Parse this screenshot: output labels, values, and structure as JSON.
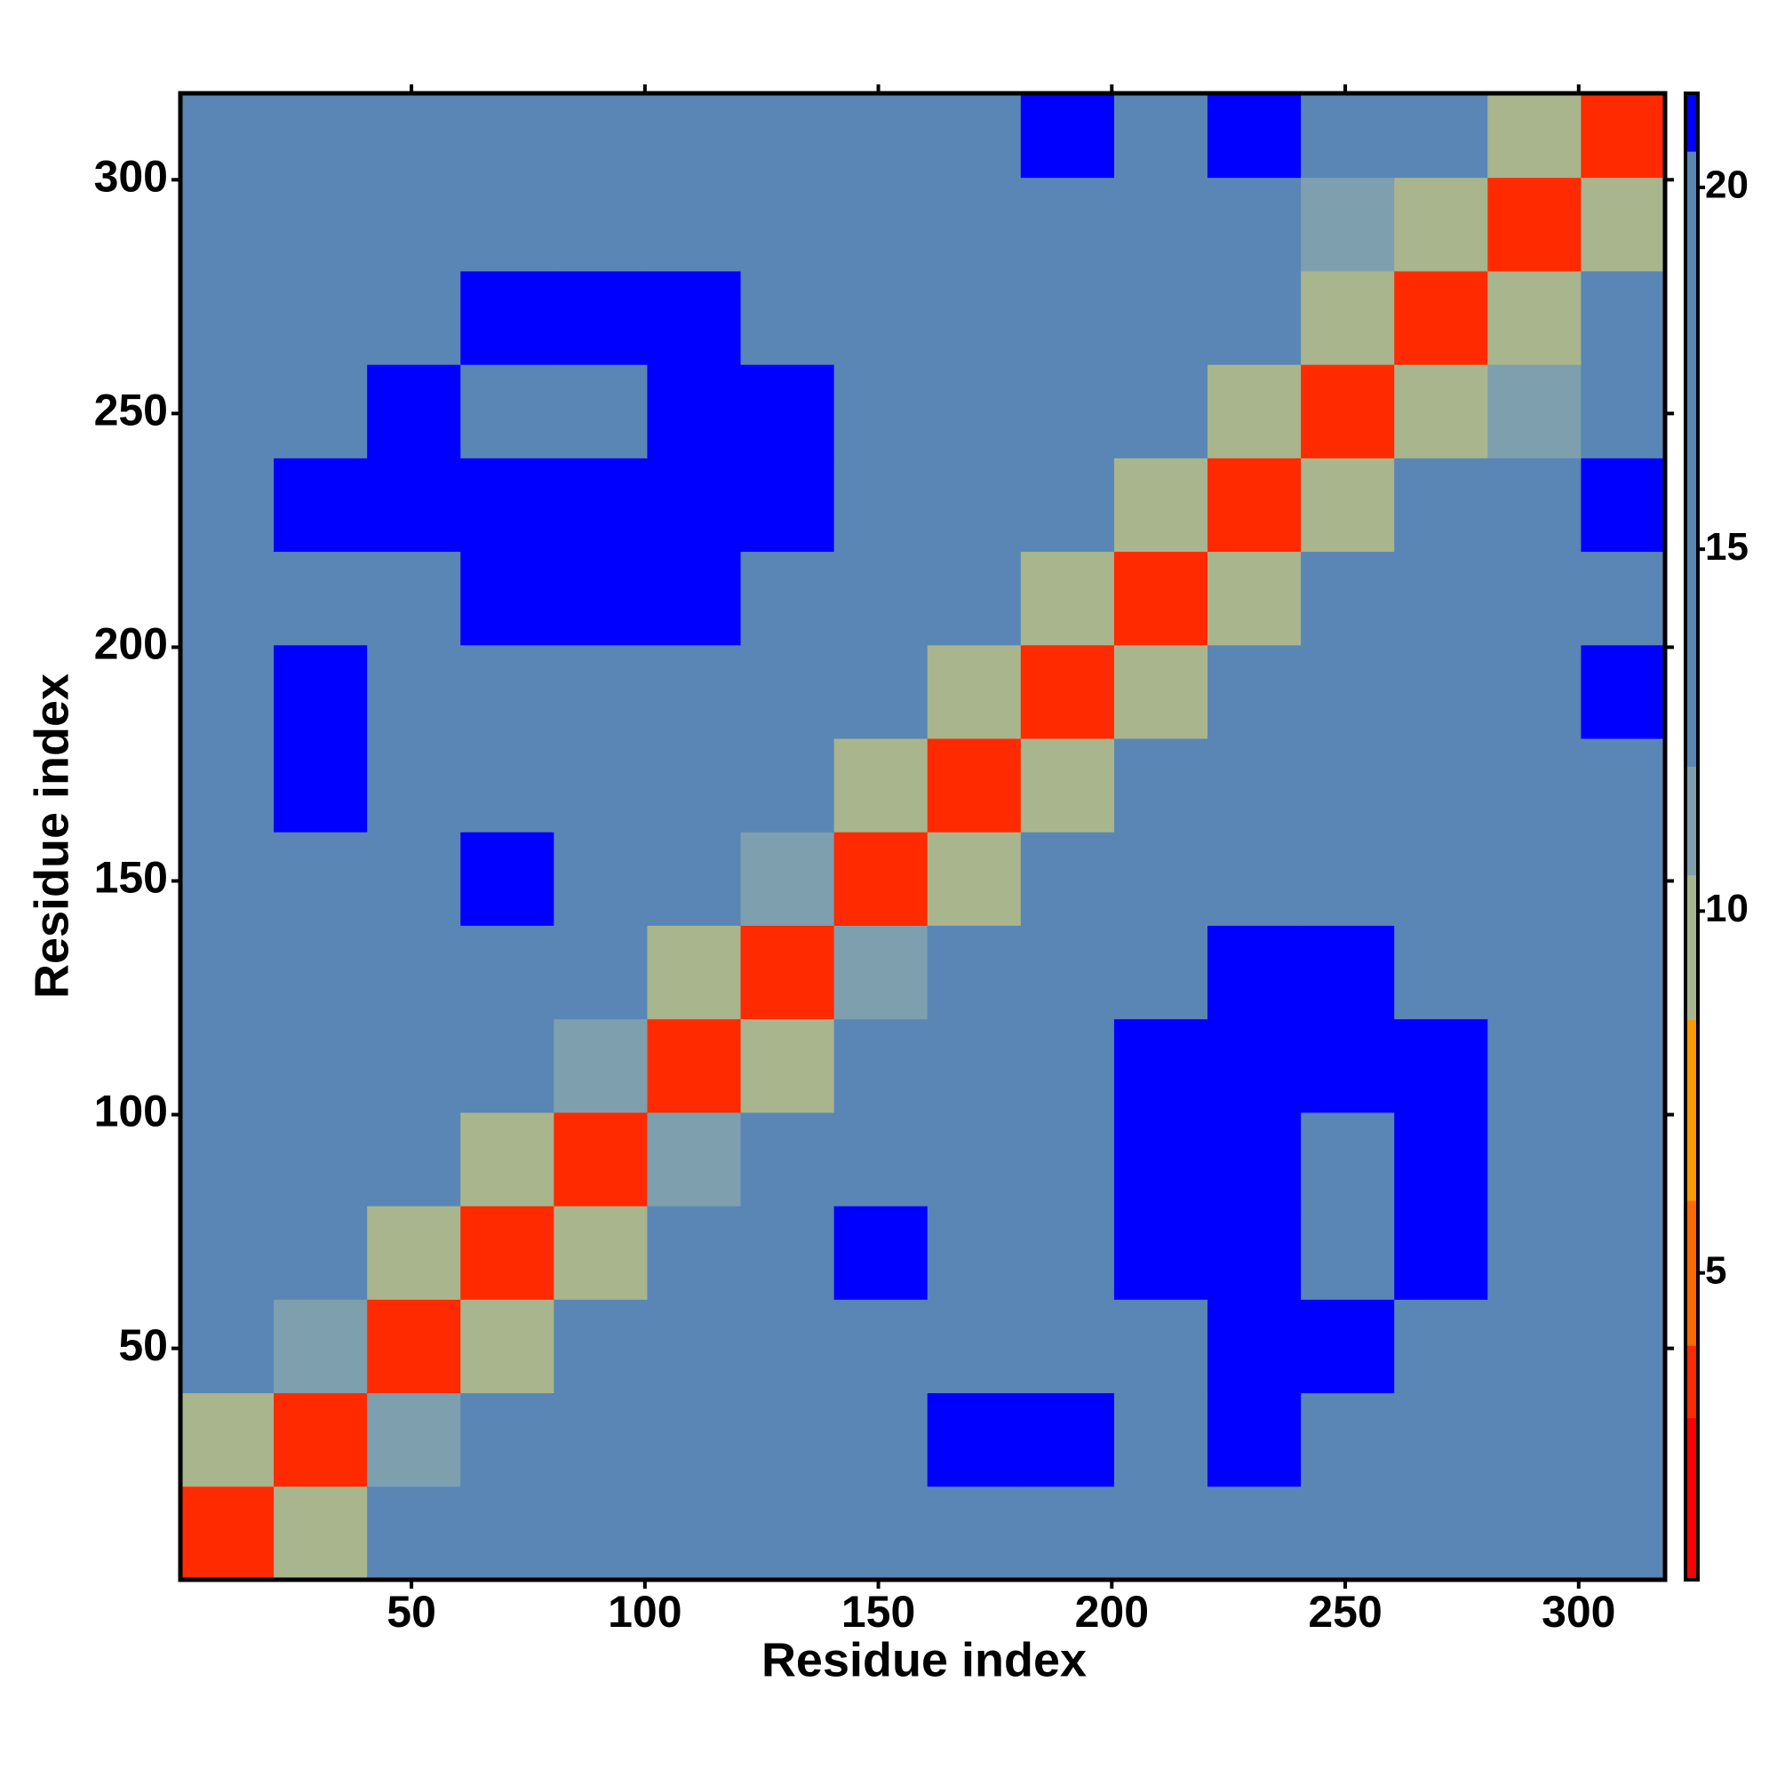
{
  "chart_data": {
    "type": "heatmap",
    "xlabel": "Residue index",
    "ylabel": "Residue index",
    "xbins": [
      0.5,
      20.5,
      40.5,
      60.5,
      80.5,
      100.5,
      120.5,
      140.5,
      160.5,
      180.5,
      200.5,
      220.5,
      240.5,
      260.5,
      280.5,
      300.5,
      318.5
    ],
    "ybins": [
      0.5,
      20.5,
      40.5,
      60.5,
      80.5,
      100.5,
      120.5,
      140.5,
      160.5,
      180.5,
      200.5,
      220.5,
      240.5,
      260.5,
      280.5,
      300.5,
      318.5
    ],
    "xlim": [
      0.5,
      318.5
    ],
    "ylim": [
      0.5,
      318.5
    ],
    "xticks": [
      50,
      100,
      150,
      200,
      250,
      300
    ],
    "yticks": [
      50,
      100,
      150,
      200,
      250,
      300
    ],
    "z": [
      [
        3,
        10,
        14,
        15,
        17,
        19,
        17,
        17,
        18,
        18,
        18,
        17,
        17,
        15,
        12,
        14
      ],
      [
        10,
        3,
        11,
        14,
        15,
        20,
        17,
        18,
        21,
        21,
        19,
        21,
        18,
        20,
        15,
        17
      ],
      [
        14,
        11,
        3,
        10,
        13,
        16,
        15,
        17,
        19,
        18,
        20,
        21,
        21,
        18,
        17,
        19
      ],
      [
        15,
        14,
        10,
        3,
        10,
        13,
        12,
        21,
        18,
        20,
        21,
        21,
        19,
        21,
        17,
        17
      ],
      [
        17,
        15,
        13,
        10,
        3,
        11,
        12,
        20,
        19,
        18,
        21,
        21,
        20,
        21,
        19,
        17
      ],
      [
        19,
        20,
        16,
        13,
        11,
        3,
        10,
        17,
        19,
        20,
        21,
        21,
        21,
        21,
        17,
        16
      ],
      [
        17,
        17,
        15,
        12,
        12,
        10,
        3,
        11,
        14,
        16,
        18,
        21,
        21,
        18,
        16,
        14
      ],
      [
        17,
        18,
        17,
        21,
        20,
        17,
        11,
        3,
        10,
        12,
        15,
        17,
        18,
        17,
        16,
        20
      ],
      [
        18,
        21,
        19,
        18,
        19,
        19,
        14,
        10,
        3,
        10,
        13,
        13,
        14,
        17,
        18,
        20
      ],
      [
        18,
        21,
        18,
        20,
        18,
        20,
        16,
        12,
        10,
        3,
        10,
        12,
        13,
        15,
        18,
        21
      ],
      [
        18,
        19,
        20,
        21,
        21,
        21,
        18,
        15,
        13,
        10,
        3,
        10,
        12,
        14,
        15,
        19
      ],
      [
        17,
        21,
        21,
        21,
        21,
        21,
        21,
        17,
        13,
        12,
        10,
        3,
        10,
        12,
        14,
        21
      ],
      [
        17,
        18,
        21,
        19,
        20,
        21,
        21,
        18,
        14,
        13,
        12,
        10,
        3,
        10,
        11,
        15
      ],
      [
        15,
        20,
        18,
        21,
        21,
        21,
        18,
        17,
        17,
        15,
        14,
        12,
        10,
        3,
        10,
        12
      ],
      [
        12,
        15,
        17,
        17,
        19,
        17,
        16,
        16,
        18,
        18,
        15,
        14,
        11,
        10,
        3,
        10
      ],
      [
        14,
        17,
        19,
        17,
        17,
        16,
        14,
        20,
        20,
        21,
        19,
        21,
        15,
        12,
        10,
        3
      ]
    ],
    "zlim": [
      0.76,
      21.3
    ],
    "zticks": [
      5,
      10,
      15,
      20
    ],
    "colorscale": [
      [
        0.76,
        "#ff0000"
      ],
      [
        3,
        "#ff2a00"
      ],
      [
        4,
        "#ff6a00"
      ],
      [
        6,
        "#ff9900"
      ],
      [
        8.5,
        "#a9b58d"
      ],
      [
        10.5,
        "#7d9fae"
      ],
      [
        12,
        "#5a86b6"
      ],
      [
        20.5,
        "#0000ff"
      ]
    ]
  }
}
